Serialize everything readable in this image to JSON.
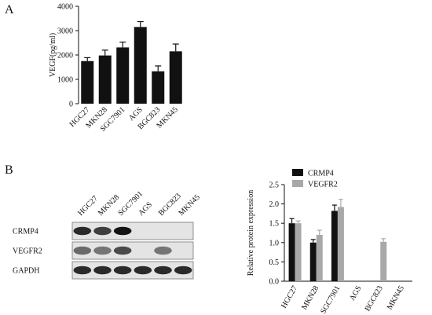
{
  "panel_a": {
    "label": "A"
  },
  "panel_b": {
    "label": "B"
  },
  "blot": {
    "lanes": [
      "HGC27",
      "MKN28",
      "SGC7901",
      "AGS",
      "BGC823",
      "MKN45"
    ],
    "rows": [
      "CRMP4",
      "VEGFR2",
      "GAPDH"
    ],
    "band_intensity": {
      "CRMP4": [
        0.9,
        0.8,
        1.0,
        0.0,
        0.0,
        0.0
      ],
      "VEGFR2": [
        0.6,
        0.55,
        0.75,
        0.0,
        0.55,
        0.0
      ],
      "GAPDH": [
        0.9,
        0.9,
        0.9,
        0.9,
        0.9,
        0.9
      ]
    }
  },
  "chart_data": [
    {
      "type": "bar",
      "title": "",
      "xlabel": "",
      "ylabel": "VEGF(pg/ml)",
      "categories": [
        "HGC27",
        "MKN28",
        "SGC7901",
        "AGS",
        "BGC823",
        "MKN45"
      ],
      "values": [
        1750,
        1980,
        2310,
        3150,
        1330,
        2150
      ],
      "errors": [
        140,
        220,
        220,
        220,
        220,
        300
      ],
      "ylim": [
        0,
        4000
      ],
      "yticks": [
        0,
        1000,
        2000,
        3000,
        4000
      ],
      "grid": false,
      "color": "#111111"
    },
    {
      "type": "bar",
      "title": "",
      "xlabel": "",
      "ylabel": "Relative protein expression",
      "categories": [
        "HGC27",
        "MKN28",
        "SGC7901",
        "AGS",
        "BGC823",
        "MKN45"
      ],
      "series": [
        {
          "name": "CRMP4",
          "values": [
            1.5,
            1.0,
            1.82,
            0,
            0,
            0
          ],
          "errors": [
            0.12,
            0.08,
            0.15,
            0,
            0,
            0
          ],
          "color": "#111111"
        },
        {
          "name": "VEGFR2",
          "values": [
            1.5,
            1.2,
            1.92,
            0,
            1.02,
            0
          ],
          "errors": [
            0.06,
            0.12,
            0.2,
            0,
            0.08,
            0
          ],
          "color": "#a8a8a8"
        }
      ],
      "ylim": [
        0,
        2.5
      ],
      "yticks": [
        "0.0",
        "0.5",
        "1.0",
        "1.5",
        "2.0",
        "2.5"
      ],
      "grid": false,
      "legend": "top-left"
    }
  ]
}
